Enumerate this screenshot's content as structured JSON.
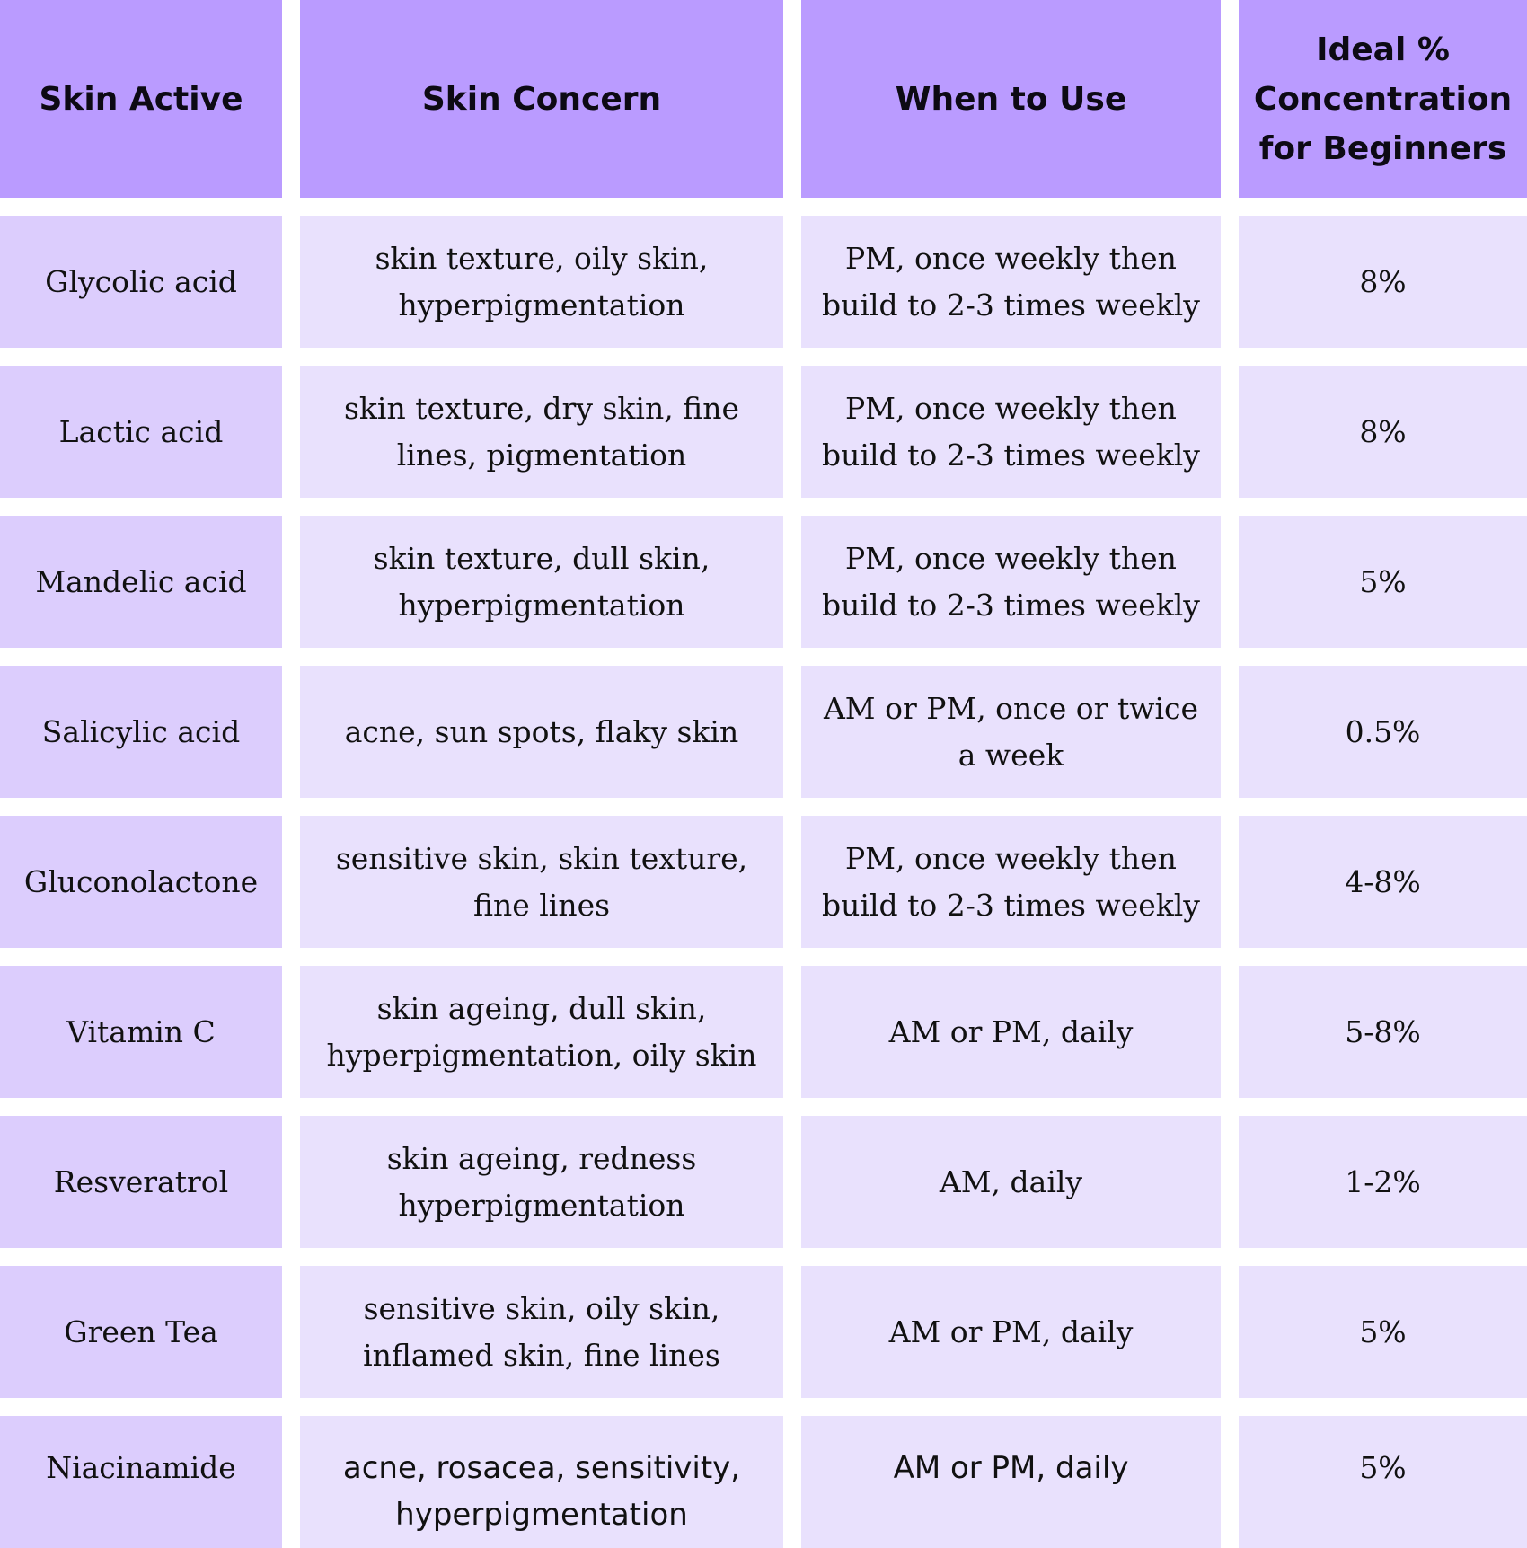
{
  "colors": {
    "header": "#ba9bff",
    "first_column": "#dccdfd",
    "cells": "#e9e1fd"
  },
  "headers": [
    "Skin Active",
    "Skin Concern",
    "When to Use",
    "Ideal % Concentration for Beginners"
  ],
  "rows": [
    [
      "Glycolic acid",
      "skin texture, oily skin, hyperpigmentation",
      "PM,  once weekly then build to 2-3 times weekly",
      "8%"
    ],
    [
      "Lactic acid",
      "skin texture, dry skin,  fine lines, pigmentation",
      "PM,  once weekly then build to 2-3 times weekly",
      "8%"
    ],
    [
      "Mandelic acid",
      "skin texture, dull skin, hyperpigmentation",
      "PM,  once weekly then build to 2-3 times weekly",
      "5%"
    ],
    [
      "Salicylic acid",
      "acne,  sun spots, flaky skin",
      "AM or PM, once or twice a week",
      "0.5%"
    ],
    [
      "Gluconolactone",
      "sensitive skin,  skin texture, fine lines",
      "PM,  once weekly then build to 2-3 times weekly",
      "4-8%"
    ],
    [
      "Vitamin C",
      "skin ageing, dull skin, hyperpigmentation, oily skin",
      "AM or PM, daily",
      "5-8%"
    ],
    [
      "Resveratrol",
      "skin ageing, redness hyperpigmentation",
      "AM, daily",
      "1-2%"
    ],
    [
      "Green Tea",
      "sensitive skin, oily skin, inflamed skin, fine lines",
      "AM or PM, daily",
      "5%"
    ],
    [
      "Niacinamide",
      "acne, rosacea,  sensitivity, hyperpigmentation",
      "AM or PM, daily",
      "5%"
    ]
  ]
}
